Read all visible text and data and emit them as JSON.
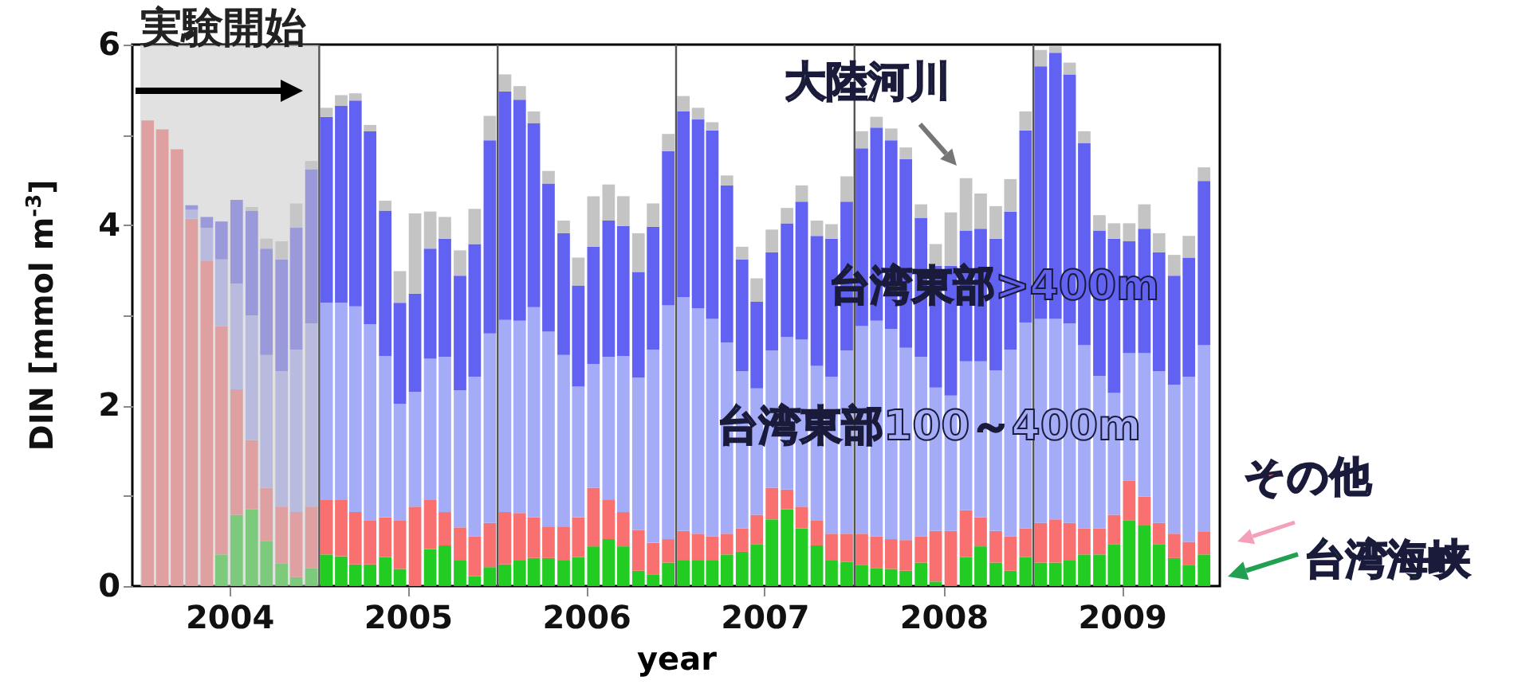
{
  "chart_data": {
    "type": "bar",
    "stacked": true,
    "xlabel": "year",
    "ylabel": "DIN [mmol m$^{-3}$]",
    "x": [
      "2004-01-16",
      "2004-02-15",
      "2004-03-16",
      "2004-04-15",
      "2004-05-16",
      "2004-06-15",
      "2004-07-16",
      "2004-08-16",
      "2004-09-15",
      "2004-10-16",
      "2004-11-15",
      "2004-12-16",
      "2005-01-16",
      "2005-02-15",
      "2005-03-16",
      "2005-04-15",
      "2005-05-16",
      "2005-06-15",
      "2005-07-16",
      "2005-08-16",
      "2005-09-15",
      "2005-10-16",
      "2005-11-15",
      "2005-12-16",
      "2006-01-16",
      "2006-02-15",
      "2006-03-16",
      "2006-04-15",
      "2006-05-16",
      "2006-06-15",
      "2006-07-16",
      "2006-08-16",
      "2006-09-15",
      "2006-10-16",
      "2006-11-15",
      "2006-12-16",
      "2007-01-16",
      "2007-02-15",
      "2007-03-16",
      "2007-04-15",
      "2007-05-16",
      "2007-06-15",
      "2007-07-16",
      "2007-08-16",
      "2007-09-15",
      "2007-10-16",
      "2007-11-15",
      "2007-12-16",
      "2008-01-16",
      "2008-02-15",
      "2008-03-16",
      "2008-04-15",
      "2008-05-16",
      "2008-06-15",
      "2008-07-16",
      "2008-08-16",
      "2008-09-15",
      "2008-10-16",
      "2008-11-15",
      "2008-12-16",
      "2009-01-16",
      "2009-02-15",
      "2009-03-16",
      "2009-04-15",
      "2009-05-16",
      "2009-06-15",
      "2009-07-16",
      "2009-08-16",
      "2009-09-15",
      "2009-10-16",
      "2009-11-15",
      "2009-12-16"
    ],
    "xlim": [
      "2004-01",
      "2010-01"
    ],
    "xticks": [
      {
        "value": "2004-07",
        "label": "2004"
      },
      {
        "value": "2005-07",
        "label": "2005"
      },
      {
        "value": "2006-07",
        "label": "2006"
      },
      {
        "value": "2007-07",
        "label": "2007"
      },
      {
        "value": "2008-07",
        "label": "2008"
      },
      {
        "value": "2009-07",
        "label": "2009"
      }
    ],
    "ylim": [
      0,
      6
    ],
    "yticks": [
      0,
      {
        "value": 1,
        "label": null
      },
      2,
      {
        "value": 3,
        "label": null
      },
      4,
      {
        "value": 5,
        "label": null
      },
      6
    ],
    "series": [
      {
        "name": "台湾海峡",
        "color": "#22cc22",
        "values": [
          0,
          0,
          0,
          0,
          0,
          0.35,
          0.79,
          0.85,
          0.5,
          0.25,
          0.1,
          0.2,
          0.35,
          0.33,
          0.24,
          0.24,
          0.32,
          0.19,
          0,
          0.41,
          0.45,
          0.29,
          0.11,
          0.21,
          0.24,
          0.29,
          0.31,
          0.31,
          0.29,
          0.32,
          0.44,
          0.52,
          0.44,
          0.17,
          0.13,
          0.26,
          0.29,
          0.29,
          0.29,
          0.35,
          0.38,
          0.46,
          0.74,
          0.85,
          0.64,
          0.45,
          0.29,
          0.27,
          0.23,
          0.2,
          0.19,
          0.17,
          0.26,
          0.05,
          0,
          0.32,
          0.44,
          0.26,
          0.17,
          0.32,
          0.26,
          0.26,
          0.29,
          0.35,
          0.35,
          0.46,
          0.73,
          0.67,
          0.46,
          0.31,
          0.23,
          0.35
        ]
      },
      {
        "name": "その他",
        "color": "#f87070",
        "values": [
          5.16,
          5.06,
          4.84,
          4.07,
          3.6,
          2.53,
          1.39,
          0.77,
          0.59,
          0.63,
          0.72,
          0.68,
          0.61,
          0.63,
          0.58,
          0.49,
          0.44,
          0.54,
          0.88,
          0.55,
          0.37,
          0.36,
          0.44,
          0.49,
          0.58,
          0.52,
          0.45,
          0.35,
          0.37,
          0.44,
          0.65,
          0.44,
          0.38,
          0.45,
          0.35,
          0.26,
          0.32,
          0.29,
          0.26,
          0.23,
          0.26,
          0.33,
          0.35,
          0.22,
          0.24,
          0.28,
          0.29,
          0.31,
          0.35,
          0.35,
          0.33,
          0.34,
          0.29,
          0.56,
          0.61,
          0.52,
          0.32,
          0.35,
          0.38,
          0.32,
          0.44,
          0.48,
          0.41,
          0.29,
          0.29,
          0.33,
          0.44,
          0.32,
          0.24,
          0.27,
          0.26,
          0.25
        ]
      },
      {
        "name": "台湾東部100～400m",
        "color": "#a4acf8",
        "values": [
          0,
          0,
          0,
          0.1,
          0.37,
          0.74,
          1.17,
          1.38,
          1.47,
          1.5,
          1.8,
          2.03,
          2.18,
          2.18,
          2.28,
          2.17,
          1.79,
          1.29,
          1.27,
          1.56,
          1.72,
          1.52,
          1.77,
          2.1,
          2.13,
          2.13,
          2.33,
          2.16,
          1.9,
          1.45,
          1.37,
          1.58,
          1.73,
          1.69,
          2.14,
          2.59,
          2.59,
          2.5,
          2.41,
          2.12,
          1.74,
          1.4,
          1.52,
          1.69,
          1.85,
          1.71,
          1.74,
          2.03,
          2.3,
          2.39,
          2.33,
          2.13,
          1.99,
          1.59,
          1.5,
          1.65,
          1.73,
          1.78,
          2.07,
          2.28,
          2.26,
          2.22,
          2.21,
          2.03,
          1.69,
          1.35,
          1.41,
          1.59,
          1.68,
          1.65,
          1.83,
          2.07
        ]
      },
      {
        "name": "台湾東部>400m",
        "color": "#6262f2",
        "values": [
          0,
          0,
          0,
          0.05,
          0.12,
          0.42,
          0.93,
          1.16,
          1.18,
          1.24,
          1.35,
          1.71,
          2.06,
          2.18,
          2.28,
          2.14,
          1.61,
          1.12,
          1.09,
          1.22,
          1.31,
          1.27,
          1.47,
          2.14,
          2.53,
          2.45,
          2.04,
          1.64,
          1.35,
          1.12,
          1.3,
          1.51,
          1.44,
          1.17,
          1.36,
          1.71,
          2.06,
          2.09,
          2.09,
          1.74,
          1.24,
          0.96,
          1.09,
          1.26,
          1.53,
          1.44,
          1.53,
          1.65,
          1.97,
          2.14,
          2.09,
          2.09,
          1.54,
          1.35,
          1.44,
          1.45,
          1.47,
          1.46,
          1.53,
          2.13,
          2.8,
          2.95,
          2.76,
          2.24,
          1.61,
          1.71,
          1.24,
          1.38,
          1.32,
          1.21,
          1.32,
          1.82
        ]
      },
      {
        "name": "大陸河川",
        "color": "#c4c4c4",
        "values": [
          0,
          0,
          0,
          0,
          0,
          0,
          0,
          0.04,
          0.11,
          0.2,
          0.27,
          0.09,
          0.1,
          0.12,
          0.08,
          0.07,
          0.11,
          0.35,
          0.89,
          0.41,
          0.24,
          0.28,
          0.39,
          0.27,
          0.19,
          0.15,
          0.13,
          0.14,
          0.14,
          0.31,
          0.56,
          0.4,
          0.33,
          0.43,
          0.26,
          0.19,
          0.17,
          0.13,
          0.09,
          0.11,
          0.14,
          0.26,
          0.25,
          0.17,
          0.18,
          0.17,
          0.16,
          0.28,
          0.19,
          0.12,
          0.13,
          0.13,
          0.15,
          0.24,
          0.59,
          0.58,
          0.39,
          0.36,
          0.36,
          0.21,
          0.18,
          0.07,
          0.13,
          0.13,
          0.17,
          0.17,
          0.2,
          0.27,
          0.21,
          0.23,
          0.24,
          0.15
        ]
      }
    ],
    "bands": [
      {
        "axis": "x",
        "from": "2004-01",
        "to": "2005-01",
        "label": "実験開始",
        "color": "#c8c8c8"
      }
    ],
    "ref_lines": [
      {
        "axis": "x",
        "value": "2005-01",
        "color": "#555555"
      },
      {
        "axis": "x",
        "value": "2006-01",
        "color": "#555555"
      },
      {
        "axis": "x",
        "value": "2007-01",
        "color": "#555555"
      },
      {
        "axis": "x",
        "value": "2008-01",
        "color": "#555555"
      },
      {
        "axis": "x",
        "value": "2009-01",
        "color": "#555555"
      }
    ]
  }
}
